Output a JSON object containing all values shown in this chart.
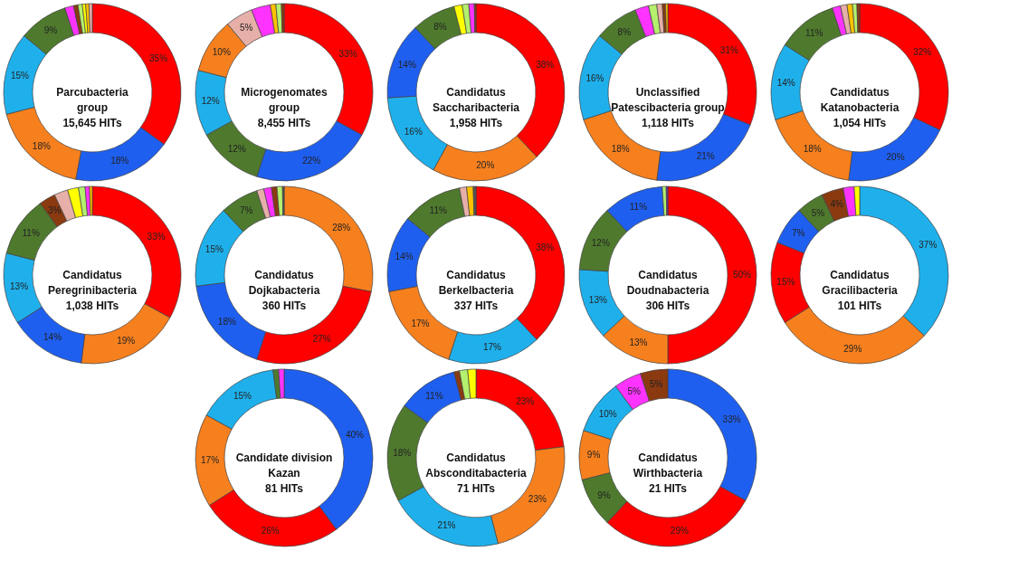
{
  "chart_data": [
    {
      "type": "donut",
      "title": "Parcubacteria\ngroup",
      "subtitle": "15,645 HITs",
      "categories": [
        null,
        null,
        null,
        null,
        null,
        null,
        null,
        null,
        null,
        null,
        null
      ],
      "values": [
        35,
        18,
        18,
        15,
        9,
        1.6,
        0.8,
        0.8,
        0.6,
        0.6,
        0.6
      ],
      "colors": [
        "#ff0000",
        "#1f5ff0",
        "#f7801e",
        "#1fb0ec",
        "#4f7a2e",
        "#ff33ff",
        "#8b3a10",
        "#b4f06e",
        "#ffff00",
        "#ffc000",
        "#e6b0a8"
      ],
      "value_labels": [
        "35%",
        "18%",
        "18%",
        "15%",
        "9%",
        null,
        null,
        null,
        null,
        null,
        null
      ]
    },
    {
      "type": "donut",
      "title": "Microgenomates\ngroup",
      "subtitle": "8,455 HITs",
      "categories": [
        null,
        null,
        null,
        null,
        null,
        null,
        null,
        null,
        null,
        null
      ],
      "values": [
        33,
        22,
        12,
        12,
        10,
        5,
        3.5,
        1,
        1,
        0.5
      ],
      "colors": [
        "#ff0000",
        "#1f5ff0",
        "#4f7a2e",
        "#1fb0ec",
        "#f7801e",
        "#e6b0a8",
        "#ff33ff",
        "#ffc000",
        "#b4f06e",
        "#8b3a10"
      ],
      "value_labels": [
        "33%",
        "22%",
        "12%",
        "12%",
        "10%",
        "5%",
        null,
        null,
        null,
        null
      ]
    },
    {
      "type": "donut",
      "title": "Candidatus\nSaccharibacteria",
      "subtitle": "1,958 HITs",
      "categories": [
        null,
        null,
        null,
        null,
        null,
        null,
        null,
        null,
        null
      ],
      "values": [
        38,
        20,
        16,
        14,
        8,
        1.5,
        1.2,
        1,
        0.3
      ],
      "colors": [
        "#ff0000",
        "#f7801e",
        "#1fb0ec",
        "#1f5ff0",
        "#4f7a2e",
        "#ffff00",
        "#b4f06e",
        "#ff33ff",
        "#8b3a10"
      ],
      "value_labels": [
        "38%",
        "20%",
        "16%",
        "14%",
        "8%",
        null,
        null,
        null,
        null
      ]
    },
    {
      "type": "donut",
      "title": "Unclassified\nPatescibacteria group",
      "subtitle": "1,118 HITs",
      "categories": [
        null,
        null,
        null,
        null,
        null,
        null,
        null,
        null,
        null,
        null
      ],
      "values": [
        31,
        21,
        18,
        16,
        8,
        2.5,
        1.5,
        1,
        0.6,
        0.4
      ],
      "colors": [
        "#ff0000",
        "#1f5ff0",
        "#f7801e",
        "#1fb0ec",
        "#4f7a2e",
        "#ff33ff",
        "#b4f06e",
        "#e6b0a8",
        "#8b3a10",
        "#ffc000"
      ],
      "value_labels": [
        "31%",
        "21%",
        "18%",
        "16%",
        "8%",
        null,
        null,
        null,
        null,
        null
      ]
    },
    {
      "type": "donut",
      "title": "Candidatus\nKatanobacteria",
      "subtitle": "1,054 HITs",
      "categories": [
        null,
        null,
        null,
        null,
        null,
        null,
        null,
        null,
        null,
        null
      ],
      "values": [
        32,
        20,
        18,
        14,
        11,
        1.5,
        1.2,
        1,
        0.8,
        0.5
      ],
      "colors": [
        "#ff0000",
        "#1f5ff0",
        "#f7801e",
        "#1fb0ec",
        "#4f7a2e",
        "#ff33ff",
        "#e6b0a8",
        "#ffc000",
        "#b4f06e",
        "#8b3a10"
      ],
      "value_labels": [
        "32%",
        "20%",
        "18%",
        "14%",
        "11%",
        null,
        null,
        null,
        null,
        null
      ]
    },
    {
      "type": "donut",
      "title": "Candidatus\nPeregrinibacteria",
      "subtitle": "1,038 HITs",
      "categories": [
        null,
        null,
        null,
        null,
        null,
        null,
        null,
        null,
        null,
        null,
        null
      ],
      "values": [
        33,
        19,
        14,
        13,
        11,
        3,
        2.5,
        2,
        1.2,
        0.8,
        0.5
      ],
      "colors": [
        "#ff0000",
        "#f7801e",
        "#1f5ff0",
        "#1fb0ec",
        "#4f7a2e",
        "#8b3a10",
        "#e6b0a8",
        "#ffff00",
        "#b4f06e",
        "#ff33ff",
        "#ffc000"
      ],
      "value_labels": [
        "33%",
        "19%",
        "14%",
        "13%",
        "11%",
        "3%",
        null,
        null,
        null,
        null,
        null
      ]
    },
    {
      "type": "donut",
      "title": "Candidatus\nDojkabacteria",
      "subtitle": "360 HITs",
      "categories": [
        null,
        null,
        null,
        null,
        null,
        null,
        null,
        null,
        null,
        null
      ],
      "values": [
        28,
        27,
        18,
        15,
        7,
        1.3,
        1.4,
        1,
        1,
        0.3
      ],
      "colors": [
        "#f7801e",
        "#ff0000",
        "#1f5ff0",
        "#1fb0ec",
        "#4f7a2e",
        "#e6b0a8",
        "#ff33ff",
        "#8b3a10",
        "#b4f06e",
        "#555555"
      ],
      "value_labels": [
        "28%",
        "27%",
        "18%",
        "15%",
        "7%",
        null,
        null,
        null,
        null,
        null
      ]
    },
    {
      "type": "donut",
      "title": "Candidatus\nBerkelbacteria",
      "subtitle": "337 HITs",
      "categories": [
        null,
        null,
        null,
        null,
        null,
        null,
        null,
        null
      ],
      "values": [
        38,
        17,
        17,
        14,
        11,
        1.3,
        1.2,
        0.5
      ],
      "colors": [
        "#ff0000",
        "#1fb0ec",
        "#f7801e",
        "#1f5ff0",
        "#4f7a2e",
        "#e6b0a8",
        "#ffc000",
        "#555555"
      ],
      "value_labels": [
        "38%",
        "17%",
        "17%",
        "14%",
        "11%",
        null,
        null,
        null
      ]
    },
    {
      "type": "donut",
      "title": "Candidatus\nDoudnabacteria",
      "subtitle": "306 HITs",
      "categories": [
        null,
        null,
        null,
        null,
        null,
        null,
        null
      ],
      "values": [
        50,
        13,
        13,
        12,
        11,
        0.7,
        0.3
      ],
      "colors": [
        "#ff0000",
        "#f7801e",
        "#1fb0ec",
        "#4f7a2e",
        "#1f5ff0",
        "#b4f06e",
        "#7030a0"
      ],
      "value_labels": [
        "50%",
        "13%",
        "13%",
        "12%",
        "11%",
        null,
        null
      ]
    },
    {
      "type": "donut",
      "title": "Candidatus\nGracilibacteria",
      "subtitle": "101 HITs",
      "categories": [
        null,
        null,
        null,
        null,
        null,
        null,
        null,
        null
      ],
      "values": [
        37,
        29,
        15,
        7,
        5,
        4,
        2,
        1
      ],
      "colors": [
        "#1fb0ec",
        "#f7801e",
        "#ff0000",
        "#1f5ff0",
        "#4f7a2e",
        "#8b3a10",
        "#ff33ff",
        "#ffff00"
      ],
      "value_labels": [
        "37%",
        "29%",
        "15%",
        "7%",
        "5%",
        "4%",
        null,
        null
      ]
    },
    {
      "type": "donut",
      "title": "Candidate division\nKazan",
      "subtitle": "81 HITs",
      "categories": [
        null,
        null,
        null,
        null,
        null,
        null
      ],
      "values": [
        40,
        26,
        17,
        15,
        1,
        1
      ],
      "colors": [
        "#1f5ff0",
        "#ff0000",
        "#f7801e",
        "#1fb0ec",
        "#4f7a2e",
        "#ff33ff"
      ],
      "value_labels": [
        "40%",
        "26%",
        "17%",
        "15%",
        null,
        null
      ]
    },
    {
      "type": "donut",
      "title": "Candidatus\nAbsconditabacteria",
      "subtitle": "71 HITs",
      "categories": [
        null,
        null,
        null,
        null,
        null,
        null,
        null,
        null
      ],
      "values": [
        23,
        23,
        21,
        18,
        11,
        1,
        1.5,
        1.5
      ],
      "colors": [
        "#ff0000",
        "#f7801e",
        "#1fb0ec",
        "#4f7a2e",
        "#1f5ff0",
        "#8b3a10",
        "#b4f06e",
        "#ffff00"
      ],
      "value_labels": [
        "23%",
        "23%",
        "21%",
        "18%",
        "11%",
        null,
        null,
        null
      ]
    },
    {
      "type": "donut",
      "title": "Candidatus\nWirthbacteria",
      "subtitle": "21 HITs",
      "categories": [
        null,
        null,
        null,
        null,
        null,
        null,
        null
      ],
      "values": [
        33,
        29,
        9,
        9,
        10,
        5,
        5
      ],
      "colors": [
        "#1f5ff0",
        "#ff0000",
        "#4f7a2e",
        "#f7801e",
        "#1fb0ec",
        "#ff33ff",
        "#8b3a10"
      ],
      "value_labels": [
        "33%",
        "29%",
        "9%",
        "9%",
        "10%",
        "5%",
        "5%"
      ]
    }
  ]
}
